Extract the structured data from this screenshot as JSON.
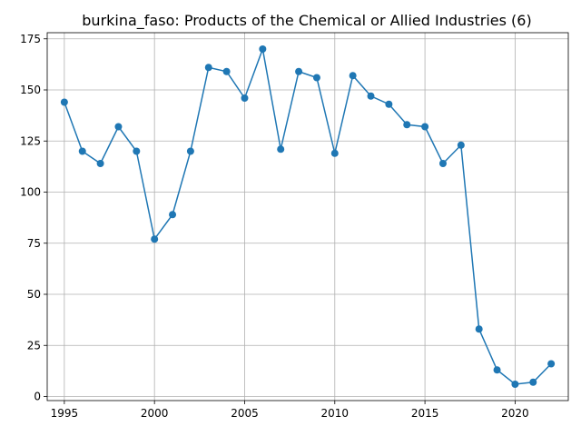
{
  "chart_data": {
    "type": "line",
    "title": "burkina_faso: Products of the Chemical or Allied Industries (6)",
    "xlabel": "",
    "ylabel": "",
    "x": [
      1995,
      1996,
      1997,
      1998,
      1999,
      2000,
      2001,
      2002,
      2003,
      2004,
      2005,
      2006,
      2007,
      2008,
      2009,
      2010,
      2011,
      2012,
      2013,
      2014,
      2015,
      2016,
      2017,
      2018,
      2019,
      2020,
      2021,
      2022
    ],
    "series": [
      {
        "values": [
          144,
          120,
          114,
          132,
          120,
          77,
          89,
          120,
          161,
          159,
          146,
          170,
          121,
          159,
          156,
          119,
          157,
          147,
          143,
          133,
          132,
          114,
          123,
          33,
          13,
          6,
          7,
          16
        ]
      }
    ],
    "xlim": [
      1994.05,
      2022.95
    ],
    "ylim": [
      -2,
      178
    ],
    "xticks": [
      1995,
      2000,
      2005,
      2010,
      2015,
      2020
    ],
    "yticks": [
      0,
      25,
      50,
      75,
      100,
      125,
      150,
      175
    ],
    "grid": true,
    "color": "#1f77b4"
  }
}
